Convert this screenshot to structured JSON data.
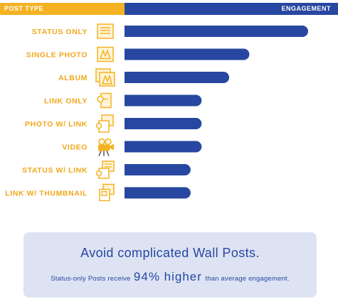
{
  "header": {
    "left_label": "POST TYPE",
    "right_label": "ENGAGEMENT"
  },
  "colors": {
    "accent_yellow": "#f4b223",
    "bar_blue": "#2747a1",
    "label_orange": "#f0a81c",
    "callout_bg": "#dde3f3"
  },
  "chart_data": {
    "type": "bar",
    "orientation": "horizontal",
    "title": "",
    "xlabel": "ENGAGEMENT",
    "ylabel": "POST TYPE",
    "categories": [
      "STATUS ONLY",
      "SINGLE PHOTO",
      "ALBUM",
      "LINK ONLY",
      "PHOTO W/ LINK",
      "VIDEO",
      "STATUS W/ LINK",
      "LINK W/ THUMBNAIL"
    ],
    "icons": [
      "status-icon",
      "single-photo-icon",
      "album-icon",
      "link-icon",
      "photo-link-icon",
      "video-camera-icon",
      "status-link-icon",
      "link-thumbnail-icon"
    ],
    "values": [
      100,
      68,
      57,
      42,
      42,
      42,
      36,
      36
    ],
    "xlim": [
      0,
      100
    ],
    "grid": false,
    "legend": "none"
  },
  "callout": {
    "title": "Avoid complicated Wall Posts.",
    "prefix": "Status-only Posts receive",
    "highlight": "94% higher",
    "suffix": "than average engagement."
  }
}
